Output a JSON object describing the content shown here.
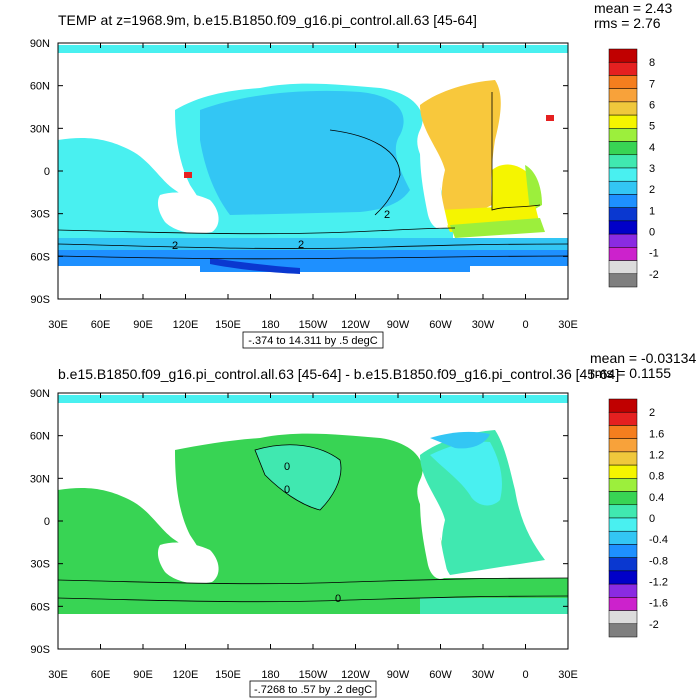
{
  "chart_data": [
    {
      "type": "map",
      "title": "TEMP at z=1968.9m, b.e15.B1850.f09_g16.pi_control.all.63 [45-64]",
      "stats": {
        "mean_label": "mean = 2.43",
        "rms_label": "rms = 2.76"
      },
      "subtitle": "-.374 to 14.311 by .5 degC",
      "x_ticks": [
        "30E",
        "60E",
        "90E",
        "120E",
        "150E",
        "180",
        "150W",
        "120W",
        "90W",
        "60W",
        "30W",
        "0",
        "30E"
      ],
      "y_ticks": [
        "90N",
        "60N",
        "30N",
        "0",
        "30S",
        "60S",
        "90S"
      ],
      "colorbar": {
        "levels": [
          "8",
          "7",
          "6",
          "5",
          "4",
          "3",
          "2",
          "1",
          "0",
          "-1",
          "-2"
        ],
        "colors": [
          "#c00000",
          "#e52020",
          "#f57e1e",
          "#f8a23a",
          "#f0c83c",
          "#f5f500",
          "#9cef3c",
          "#38d454",
          "#40e8b0",
          "#49f0f0",
          "#33c6f4",
          "#1e90ff",
          "#0a38d0",
          "#0000c8",
          "#8a2be2",
          "#cc22cc",
          "#dcdcdc",
          "#7f7f7f"
        ]
      },
      "contour_labels": [
        "2",
        "2",
        "2"
      ]
    },
    {
      "type": "map",
      "title": "b.e15.B1850.f09_g16.pi_control.all.63 [45-64] - b.e15.B1850.f09_g16.pi_control.36 [45-64]",
      "stats": {
        "mean_label": "mean = -0.03134",
        "rms_label": "rms = 0.1155"
      },
      "subtitle": "-.7268 to .57 by .2 degC",
      "x_ticks": [
        "30E",
        "60E",
        "90E",
        "120E",
        "150E",
        "180",
        "150W",
        "120W",
        "90W",
        "60W",
        "30W",
        "0",
        "30E"
      ],
      "y_ticks": [
        "90N",
        "60N",
        "30N",
        "0",
        "30S",
        "60S",
        "90S"
      ],
      "colorbar": {
        "levels": [
          "2",
          "1.6",
          "1.2",
          "0.8",
          "0.4",
          "0",
          "-0.4",
          "-0.8",
          "-1.2",
          "-1.6",
          "-2"
        ],
        "colors": [
          "#c00000",
          "#e52020",
          "#f57e1e",
          "#f8a23a",
          "#f0c83c",
          "#f5f500",
          "#9cef3c",
          "#38d454",
          "#40e8b0",
          "#49f0f0",
          "#33c6f4",
          "#1e90ff",
          "#0a38d0",
          "#0000c8",
          "#8a2be2",
          "#cc22cc",
          "#dcdcdc",
          "#7f7f7f"
        ]
      },
      "contour_labels": [
        "0",
        "0",
        "0"
      ]
    }
  ],
  "palette": {
    "land": "#ffffff",
    "frame": "#000000",
    "p1_ocean": "#49f0f0",
    "p1_pacific": "#33c6f4",
    "p1_atlantic_warm": "#f8c83c",
    "p1_atlantic_yellow": "#f5f500",
    "p1_atlantic_green": "#9cef3c",
    "p1_southern": "#1e90ff",
    "p1_southern_deep": "#0a38d0",
    "p1_red_spot": "#e52020",
    "p2_green": "#38d454",
    "p2_teal": "#40e8b0",
    "p2_cyan": "#49f0f0",
    "p2_light": "#33c6f4"
  }
}
